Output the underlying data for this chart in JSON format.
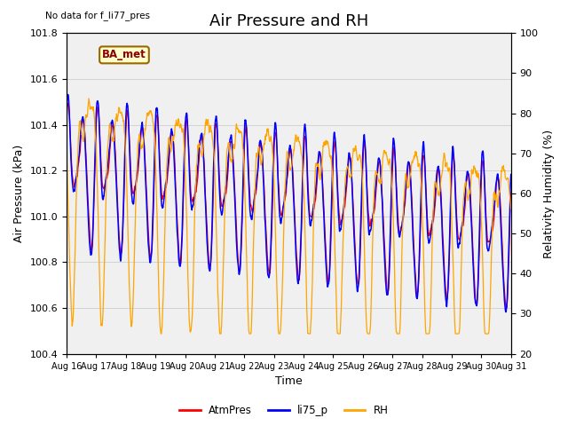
{
  "title": "Air Pressure and RH",
  "top_left_text": "No data for f_li77_pres",
  "legend_label_text": "BA_met",
  "xlabel": "Time",
  "ylabel_left": "Air Pressure (kPa)",
  "ylabel_right": "Relativity Humidity (%)",
  "ylim_left": [
    100.4,
    101.8
  ],
  "ylim_right": [
    20,
    100
  ],
  "yticks_left": [
    100.4,
    100.6,
    100.8,
    101.0,
    101.2,
    101.4,
    101.6,
    101.8
  ],
  "yticks_right": [
    20,
    30,
    40,
    50,
    60,
    70,
    80,
    90,
    100
  ],
  "xtick_labels": [
    "Aug 16",
    "Aug 17",
    "Aug 18",
    "Aug 19",
    "Aug 20",
    "Aug 21",
    "Aug 22",
    "Aug 23",
    "Aug 24",
    "Aug 25",
    "Aug 26",
    "Aug 27",
    "Aug 28",
    "Aug 29",
    "Aug 30",
    "Aug 31"
  ],
  "color_atmpres": "#FF0000",
  "color_li75p": "#0000FF",
  "color_rh": "#FFA500",
  "color_grid": "#D3D3D3",
  "background_color": "#E8E8E8",
  "plot_bg_color": "#F0F0F0",
  "legend_entries": [
    "AtmPres",
    "li75_p",
    "RH"
  ],
  "title_fontsize": 13,
  "label_fontsize": 9,
  "tick_fontsize": 8,
  "n_days": 15,
  "trend_slope": -0.018
}
